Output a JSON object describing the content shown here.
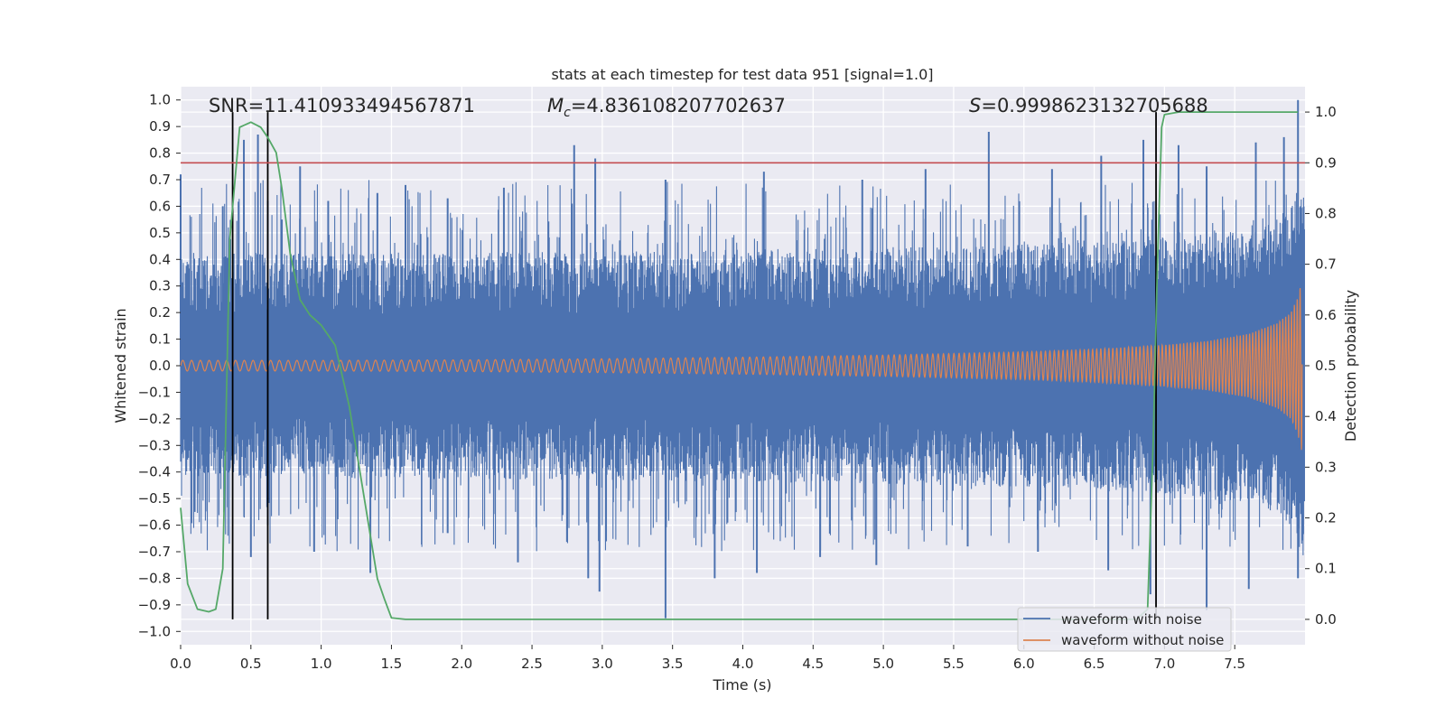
{
  "chart_data": {
    "type": "line",
    "title": "stats at each timestep for test data 951 [signal=1.0]",
    "xlabel": "Time (s)",
    "ylabel_left": "Whitened strain",
    "ylabel_right": "Detection probability",
    "xlim": [
      0.0,
      8.0
    ],
    "ylim_left": [
      -1.05,
      1.05
    ],
    "ylim_right": [
      -0.05,
      1.05
    ],
    "x_ticks": [
      0.0,
      0.5,
      1.0,
      1.5,
      2.0,
      2.5,
      3.0,
      3.5,
      4.0,
      4.5,
      5.0,
      5.5,
      6.0,
      6.5,
      7.0,
      7.5
    ],
    "x_tick_labels": [
      "0.0",
      "0.5",
      "1.0",
      "1.5",
      "2.0",
      "2.5",
      "3.0",
      "3.5",
      "4.0",
      "4.5",
      "5.0",
      "5.5",
      "6.0",
      "6.5",
      "7.0",
      "7.5"
    ],
    "y_left_ticks": [
      1.0,
      0.9,
      0.8,
      0.7,
      0.6,
      0.5,
      0.4,
      0.3,
      0.2,
      0.1,
      0.0,
      -0.1,
      -0.2,
      -0.3,
      -0.4,
      -0.5,
      -0.6,
      -0.7,
      -0.8,
      -0.9,
      -1.0
    ],
    "y_left_tick_labels": [
      "1.0",
      "0.9",
      "0.8",
      "0.7",
      "0.6",
      "0.5",
      "0.4",
      "0.3",
      "0.2",
      "0.1",
      "0.0",
      "−0.1",
      "−0.2",
      "−0.3",
      "−0.4",
      "−0.5",
      "−0.6",
      "−0.7",
      "−0.8",
      "−0.9",
      "−1.0"
    ],
    "y_right_ticks": [
      1.0,
      0.9,
      0.8,
      0.7,
      0.6,
      0.5,
      0.4,
      0.3,
      0.2,
      0.1,
      0.0
    ],
    "y_right_tick_labels": [
      "1.0",
      "0.9",
      "0.8",
      "0.7",
      "0.6",
      "0.5",
      "0.4",
      "0.3",
      "0.2",
      "0.1",
      "0.0"
    ],
    "annotations": {
      "snr": "SNR=11.410933494567871",
      "mc_symbol": "M",
      "mc_subscript": "c",
      "mc_value": "=4.836108207702637",
      "s_symbol": "S",
      "s_value": "=0.9998623132705688"
    },
    "threshold": {
      "axis": "right",
      "value": 0.9,
      "color": "#c44e52"
    },
    "vertical_markers": [
      0.37,
      0.62,
      6.94
    ],
    "noisy_envelope": {
      "name": "waveform with noise",
      "color": "#4c72b0",
      "base_amplitude": 0.3,
      "spike_top_t": [
        0.0,
        0.3,
        0.45,
        0.55,
        0.62,
        0.72,
        0.85,
        1.05,
        1.4,
        1.6,
        1.9,
        2.3,
        2.8,
        2.95,
        3.45,
        4.15,
        4.85,
        5.3,
        5.75,
        6.2,
        6.55,
        6.85,
        7.1,
        7.3,
        7.65,
        7.85,
        7.95
      ],
      "spike_top_v": [
        0.72,
        0.6,
        0.85,
        0.87,
        0.62,
        0.55,
        0.75,
        0.62,
        0.65,
        0.68,
        0.63,
        0.67,
        0.83,
        0.78,
        0.7,
        0.73,
        0.7,
        0.74,
        0.88,
        0.74,
        0.79,
        0.85,
        0.83,
        0.75,
        0.84,
        0.86,
        1.0
      ],
      "spike_bot_t": [
        0.1,
        0.5,
        0.62,
        0.95,
        1.35,
        1.9,
        2.4,
        2.9,
        2.98,
        3.45,
        3.8,
        4.1,
        4.55,
        4.95,
        5.6,
        6.1,
        6.6,
        6.9,
        7.3,
        7.6,
        7.95
      ],
      "spike_bot_v": [
        -0.55,
        -0.72,
        -0.6,
        -0.7,
        -0.78,
        -0.63,
        -0.74,
        -0.8,
        -0.85,
        -0.95,
        -0.8,
        -0.78,
        -0.72,
        -0.75,
        -0.68,
        -0.7,
        -0.77,
        -0.86,
        -0.92,
        -0.84,
        -0.8
      ]
    },
    "clean_waveform": {
      "name": "waveform without noise",
      "color": "#dd8452",
      "amplitude_t": [
        0.0,
        1.0,
        2.0,
        3.0,
        4.0,
        5.0,
        6.0,
        6.5,
        7.0,
        7.3,
        7.6,
        7.8,
        7.9,
        7.95,
        7.98
      ],
      "amplitude_v": [
        0.02,
        0.02,
        0.022,
        0.026,
        0.032,
        0.04,
        0.052,
        0.062,
        0.078,
        0.092,
        0.12,
        0.16,
        0.2,
        0.26,
        0.33
      ]
    },
    "probability": {
      "name": "detection probability",
      "color": "#55a868",
      "t": [
        0.0,
        0.05,
        0.12,
        0.2,
        0.25,
        0.3,
        0.35,
        0.42,
        0.5,
        0.57,
        0.62,
        0.68,
        0.72,
        0.78,
        0.85,
        0.92,
        1.0,
        1.05,
        1.1,
        1.2,
        1.3,
        1.4,
        1.45,
        1.5,
        1.6,
        2.0,
        3.0,
        4.0,
        5.0,
        6.0,
        6.5,
        6.8,
        6.88,
        6.92,
        6.95,
        6.98,
        7.0,
        7.1,
        7.5,
        7.95
      ],
      "v": [
        0.22,
        0.07,
        0.02,
        0.015,
        0.02,
        0.1,
        0.75,
        0.97,
        0.98,
        0.97,
        0.95,
        0.92,
        0.85,
        0.72,
        0.63,
        0.6,
        0.58,
        0.56,
        0.54,
        0.42,
        0.25,
        0.08,
        0.04,
        0.003,
        0.0,
        0.0,
        0.0,
        0.0,
        0.0,
        0.0,
        0.0,
        0.0,
        0.02,
        0.35,
        0.7,
        0.97,
        0.995,
        1.0,
        1.0,
        1.0
      ]
    },
    "legend": {
      "placement": "lower-right",
      "entries": [
        {
          "label": "waveform with noise",
          "color": "#4c72b0"
        },
        {
          "label": "waveform without noise",
          "color": "#dd8452"
        }
      ]
    }
  }
}
